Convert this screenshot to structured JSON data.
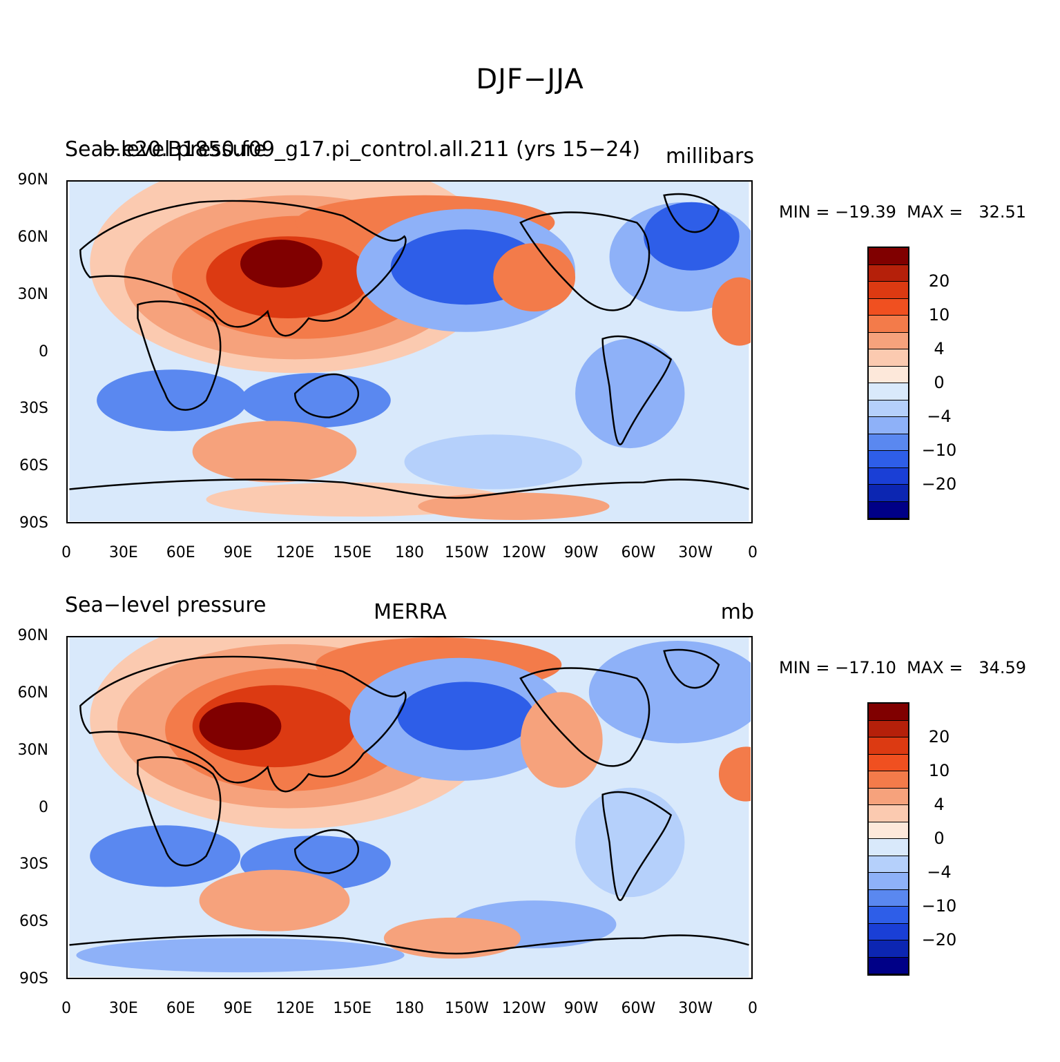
{
  "figure": {
    "title": "DJF−JJA"
  },
  "panels": [
    {
      "left_text_1": "Sea−level pressure",
      "left_text_2": "b.e20.B1850.f09_g17.pi_control.all.211 (yrs 15−24)",
      "center_text": "",
      "right_text": "millibars",
      "stats": "MIN = −19.39  MAX =   32.51"
    },
    {
      "left_text_1": "Sea−level pressure",
      "left_text_2": "",
      "center_text": "MERRA",
      "right_text": "mb",
      "stats": "MIN = −17.10  MAX =   34.59"
    }
  ],
  "lat_labels": [
    "90N",
    "60N",
    "30N",
    "0",
    "30S",
    "60S",
    "90S"
  ],
  "lon_labels": [
    "0",
    "30E",
    "60E",
    "90E",
    "120E",
    "150E",
    "180",
    "150W",
    "120W",
    "90W",
    "60W",
    "30W",
    "0"
  ],
  "colorbar": {
    "labels": [
      "20",
      "10",
      "4",
      "0",
      "−4",
      "−10",
      "−20"
    ],
    "colors": [
      "#800000",
      "#b5200a",
      "#dc3a12",
      "#f05020",
      "#f37b4a",
      "#f6a27c",
      "#fbcab0",
      "#fde8da",
      "#d9e9fb",
      "#b5d0fb",
      "#8eb1f8",
      "#5a88f0",
      "#2e5ee8",
      "#1a3fd6",
      "#0c26b2",
      "#000087"
    ]
  },
  "chart_data": {
    "type": "heatmap",
    "title": "DJF−JJA",
    "subplots": [
      {
        "name": "b.e20.B1850.f09_g17.pi_control.all.211 (yrs 15−24)",
        "variable": "Sea−level pressure",
        "units": "millibars",
        "min": -19.39,
        "max": 32.51
      },
      {
        "name": "MERRA",
        "variable": "Sea−level pressure",
        "units": "mb",
        "min": -17.1,
        "max": 34.59
      }
    ],
    "contour_levels": [
      -20,
      -10,
      -4,
      0,
      4,
      10,
      20
    ],
    "x_range": [
      "0",
      "0"
    ],
    "y_range": [
      "90S",
      "90N"
    ],
    "grid": false
  }
}
